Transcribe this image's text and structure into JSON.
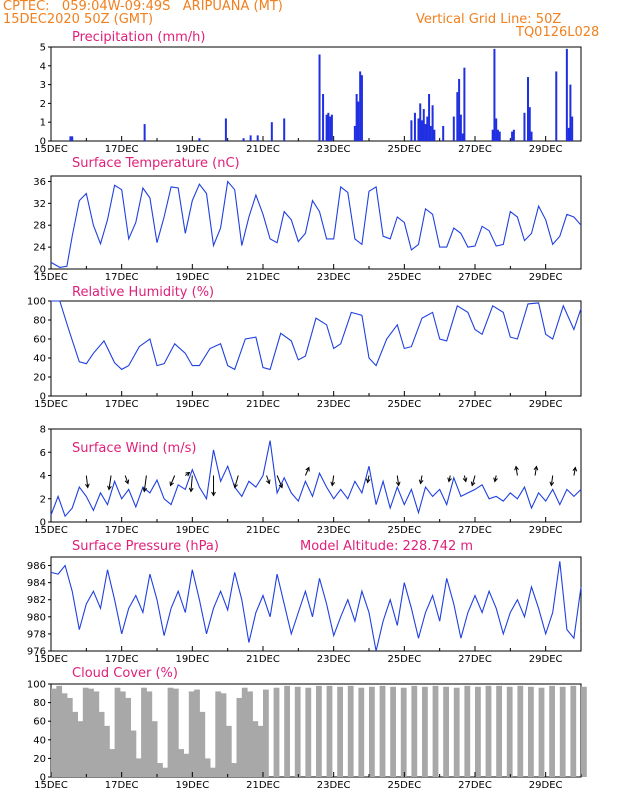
{
  "header": {
    "line1": "CPTEC:   059:04W-09:49S   ARIPUANA (MT)",
    "line2": "15DEC2020 50Z (GMT)",
    "right1": "Vertical Grid Line: 50Z",
    "right2": "TQ0126L028"
  },
  "colors": {
    "header": "#f08020",
    "title": "#e0207a",
    "line": "#2040e0",
    "bar": "#2030e0",
    "cloud": "#a8a8a8",
    "arrow": "#000000"
  },
  "chart_data": [
    {
      "type": "bar",
      "title": "Precipitation (mm/h)",
      "ylim": [
        0,
        5
      ],
      "yticks": [
        0,
        1,
        2,
        3,
        4,
        5
      ],
      "xticks": [
        "15DEC",
        "17DEC",
        "19DEC",
        "21DEC",
        "23DEC",
        "25DEC",
        "27DEC",
        "29DEC"
      ],
      "x": [
        0.55,
        0.6,
        2.65,
        4.2,
        4.95,
        5.45,
        5.65,
        5.85,
        6.25,
        6.6,
        7.6,
        7.7,
        7.8,
        7.85,
        7.9,
        7.95,
        8.6,
        8.65,
        8.7,
        8.75,
        8.8,
        10.2,
        10.3,
        10.4,
        10.45,
        10.5,
        10.55,
        10.6,
        10.65,
        10.7,
        10.75,
        10.8,
        10.85,
        11.1,
        11.4,
        11.5,
        11.55,
        11.6,
        11.65,
        11.7,
        12.5,
        12.55,
        12.6,
        12.65,
        12.7,
        13.05,
        13.1,
        13.4,
        13.5,
        13.55,
        13.6,
        14.3,
        14.6,
        14.65,
        14.7,
        14.75
      ],
      "values": [
        0.25,
        0.25,
        0.9,
        0.15,
        1.2,
        0.15,
        0.3,
        0.3,
        1.0,
        1.2,
        4.6,
        2.5,
        1.4,
        1.5,
        1.3,
        1.4,
        0.8,
        2.5,
        2.1,
        3.7,
        3.5,
        1.1,
        1.5,
        1.2,
        2.0,
        1.1,
        1.7,
        0.9,
        1.3,
        2.5,
        0.8,
        1.9,
        0.6,
        0.8,
        1.3,
        2.6,
        3.3,
        1.4,
        0.4,
        3.9,
        0.6,
        4.9,
        1.2,
        0.6,
        0.5,
        0.5,
        0.6,
        1.5,
        3.4,
        1.8,
        0.5,
        3.7,
        4.9,
        0.7,
        3.0,
        1.3
      ]
    },
    {
      "type": "line",
      "title": "Surface Temperature (nC)",
      "ylim": [
        20,
        37
      ],
      "yticks": [
        20,
        24,
        28,
        32,
        36
      ],
      "xticks": [
        "15DEC",
        "17DEC",
        "19DEC",
        "21DEC",
        "23DEC",
        "25DEC",
        "27DEC",
        "29DEC"
      ],
      "x": [
        0.0,
        0.25,
        0.45,
        0.6,
        0.8,
        1.0,
        1.2,
        1.4,
        1.6,
        1.8,
        2.0,
        2.2,
        2.4,
        2.6,
        2.8,
        3.0,
        3.2,
        3.4,
        3.6,
        3.8,
        4.0,
        4.2,
        4.4,
        4.6,
        4.8,
        5.0,
        5.2,
        5.4,
        5.6,
        5.8,
        6.0,
        6.2,
        6.4,
        6.6,
        6.8,
        7.0,
        7.2,
        7.4,
        7.6,
        7.8,
        8.0,
        8.2,
        8.4,
        8.6,
        8.8,
        9.0,
        9.2,
        9.4,
        9.6,
        9.8,
        10.0,
        10.2,
        10.4,
        10.6,
        10.8,
        11.0,
        11.2,
        11.4,
        11.6,
        11.8,
        12.0,
        12.2,
        12.4,
        12.6,
        12.8,
        13.0,
        13.2,
        13.4,
        13.6,
        13.8,
        14.0,
        14.2,
        14.4,
        14.6,
        14.8,
        15.0
      ],
      "values": [
        21.2,
        20.3,
        20.5,
        26.0,
        32.5,
        33.8,
        28.0,
        24.6,
        29.0,
        35.3,
        34.5,
        25.5,
        28.5,
        34.8,
        33.0,
        24.8,
        29.5,
        35.0,
        34.8,
        26.5,
        32.5,
        35.5,
        33.8,
        24.3,
        27.5,
        36.0,
        34.5,
        24.3,
        29.5,
        33.5,
        30.0,
        25.5,
        24.8,
        30.5,
        29.0,
        25.0,
        26.5,
        32.5,
        30.5,
        25.5,
        25.5,
        35.0,
        34.0,
        25.5,
        24.5,
        34.2,
        35.0,
        26.0,
        25.5,
        29.5,
        28.5,
        23.5,
        24.5,
        31.0,
        30.0,
        24.0,
        24.0,
        27.5,
        26.5,
        24.0,
        24.2,
        27.8,
        27.0,
        24.2,
        24.5,
        30.5,
        29.5,
        25.2,
        26.5,
        31.5,
        29.0,
        24.5,
        26.0,
        30.0,
        29.5,
        28.0
      ]
    },
    {
      "type": "line",
      "title": "Relative Humidity (%)",
      "ylim": [
        0,
        100
      ],
      "yticks": [
        0,
        20,
        40,
        60,
        80,
        100
      ],
      "xticks": [
        "15DEC",
        "17DEC",
        "19DEC",
        "21DEC",
        "23DEC",
        "25DEC",
        "27DEC",
        "29DEC"
      ],
      "x": [
        0.0,
        0.25,
        0.5,
        0.8,
        1.0,
        1.2,
        1.5,
        1.8,
        2.0,
        2.2,
        2.5,
        2.8,
        3.0,
        3.2,
        3.5,
        3.8,
        4.0,
        4.2,
        4.5,
        4.8,
        5.0,
        5.2,
        5.5,
        5.8,
        6.0,
        6.2,
        6.5,
        6.8,
        7.0,
        7.2,
        7.5,
        7.8,
        8.0,
        8.2,
        8.5,
        8.8,
        9.0,
        9.2,
        9.5,
        9.8,
        10.0,
        10.2,
        10.5,
        10.8,
        11.0,
        11.2,
        11.5,
        11.8,
        12.0,
        12.2,
        12.5,
        12.8,
        13.0,
        13.2,
        13.5,
        13.8,
        14.0,
        14.2,
        14.5,
        14.8,
        15.0
      ],
      "values": [
        100,
        100,
        70,
        36,
        34,
        45,
        58,
        35,
        28,
        32,
        52,
        60,
        32,
        34,
        55,
        45,
        32,
        32,
        50,
        55,
        32,
        28,
        60,
        62,
        30,
        28,
        66,
        58,
        38,
        42,
        82,
        75,
        50,
        55,
        88,
        85,
        40,
        32,
        60,
        75,
        50,
        52,
        82,
        88,
        60,
        58,
        95,
        88,
        70,
        65,
        95,
        88,
        62,
        60,
        97,
        98,
        65,
        60,
        95,
        70,
        92
      ]
    },
    {
      "type": "line",
      "title": "Surface Wind (m/s)",
      "ylim": [
        0,
        8
      ],
      "yticks": [
        0,
        2,
        4,
        6,
        8
      ],
      "xticks": [
        "15DEC",
        "17DEC",
        "19DEC",
        "21DEC",
        "23DEC",
        "25DEC",
        "27DEC",
        "29DEC"
      ],
      "x": [
        0.0,
        0.2,
        0.4,
        0.6,
        0.8,
        1.0,
        1.2,
        1.4,
        1.6,
        1.8,
        2.0,
        2.2,
        2.4,
        2.6,
        2.8,
        3.0,
        3.2,
        3.4,
        3.6,
        3.8,
        4.0,
        4.2,
        4.4,
        4.6,
        4.8,
        5.0,
        5.2,
        5.4,
        5.6,
        5.8,
        6.0,
        6.2,
        6.4,
        6.6,
        6.8,
        7.0,
        7.2,
        7.4,
        7.6,
        7.8,
        8.0,
        8.2,
        8.4,
        8.6,
        8.8,
        9.0,
        9.2,
        9.4,
        9.6,
        9.8,
        10.0,
        10.2,
        10.4,
        10.6,
        10.8,
        11.0,
        11.2,
        11.4,
        11.6,
        11.8,
        12.0,
        12.2,
        12.4,
        12.6,
        12.8,
        13.0,
        13.2,
        13.4,
        13.6,
        13.8,
        14.0,
        14.2,
        14.4,
        14.6,
        14.8,
        15.0
      ],
      "values": [
        0.6,
        2.2,
        0.5,
        1.2,
        3.0,
        2.2,
        1.0,
        2.5,
        1.5,
        3.5,
        2.0,
        2.8,
        1.3,
        3.0,
        2.5,
        3.6,
        2.0,
        1.5,
        3.2,
        2.8,
        4.5,
        3.0,
        2.0,
        6.2,
        3.5,
        4.8,
        3.0,
        2.2,
        3.5,
        3.0,
        4.0,
        7.0,
        2.5,
        3.8,
        2.5,
        1.8,
        3.5,
        2.2,
        4.2,
        3.0,
        2.0,
        2.8,
        2.0,
        3.5,
        2.5,
        4.8,
        1.5,
        3.5,
        1.2,
        3.0,
        1.5,
        2.8,
        0.8,
        3.0,
        2.2,
        2.8,
        1.5,
        3.8,
        2.2,
        2.5,
        2.8,
        3.2,
        2.0,
        2.2,
        1.8,
        2.5,
        2.0,
        3.0,
        1.2,
        2.5,
        1.8,
        2.8,
        1.5,
        2.8,
        2.2,
        2.8
      ],
      "arrows": [
        {
          "x": 1.0,
          "dx": 0.1,
          "dy": -1.2
        },
        {
          "x": 1.7,
          "dx": -0.15,
          "dy": -1.4
        },
        {
          "x": 2.7,
          "dx": -0.15,
          "dy": -1.6
        },
        {
          "x": 3.5,
          "dx": -0.3,
          "dy": -1.0
        },
        {
          "x": 4.0,
          "dx": -0.1,
          "dy": -1.6
        },
        {
          "x": 4.6,
          "dx": 0.0,
          "dy": -2.0
        },
        {
          "x": 5.3,
          "dx": -0.25,
          "dy": -1.2
        },
        {
          "x": 6.4,
          "dx": 0.35,
          "dy": -1.2
        },
        {
          "x": 7.2,
          "dx": 0.25,
          "dy": 0.8
        },
        {
          "x": 8.0,
          "dx": -0.1,
          "dy": -1.0
        },
        {
          "x": 9.8,
          "dx": 0.1,
          "dy": -1.0
        },
        {
          "x": 10.5,
          "dx": -0.1,
          "dy": -0.8
        },
        {
          "x": 11.3,
          "dx": -0.1,
          "dy": -0.6
        },
        {
          "x": 12.0,
          "dx": -0.2,
          "dy": -1.0
        },
        {
          "x": 12.6,
          "dx": -0.1,
          "dy": -0.6
        },
        {
          "x": 13.2,
          "dx": -0.1,
          "dy": 0.9
        },
        {
          "x": 13.7,
          "dx": 0.1,
          "dy": 0.9
        },
        {
          "x": 14.2,
          "dx": -0.1,
          "dy": -1.0
        },
        {
          "x": 14.8,
          "dx": 0.1,
          "dy": 0.8
        },
        {
          "x": 2.1,
          "dx": 0.2,
          "dy": -0.8
        },
        {
          "x": 3.8,
          "dx": 0.3,
          "dy": 0.3
        },
        {
          "x": 6.1,
          "dx": 0.2,
          "dy": -0.8
        },
        {
          "x": 9.0,
          "dx": -0.1,
          "dy": -0.7
        },
        {
          "x": 11.7,
          "dx": 0.1,
          "dy": -0.6
        }
      ]
    },
    {
      "type": "line",
      "title": "Surface Pressure (hPa)",
      "annotation": "Model Altitude: 228.742  m",
      "ylim": [
        976,
        987
      ],
      "yticks": [
        976,
        978,
        980,
        982,
        984,
        986
      ],
      "xticks": [
        "15DEC",
        "17DEC",
        "19DEC",
        "21DEC",
        "23DEC",
        "25DEC",
        "27DEC",
        "29DEC"
      ],
      "x": [
        0.0,
        0.2,
        0.4,
        0.6,
        0.8,
        1.0,
        1.2,
        1.4,
        1.6,
        1.8,
        2.0,
        2.2,
        2.4,
        2.6,
        2.8,
        3.0,
        3.2,
        3.4,
        3.6,
        3.8,
        4.0,
        4.2,
        4.4,
        4.6,
        4.8,
        5.0,
        5.2,
        5.4,
        5.6,
        5.8,
        6.0,
        6.2,
        6.4,
        6.6,
        6.8,
        7.0,
        7.2,
        7.4,
        7.6,
        7.8,
        8.0,
        8.2,
        8.4,
        8.6,
        8.8,
        9.0,
        9.2,
        9.4,
        9.6,
        9.8,
        10.0,
        10.2,
        10.4,
        10.6,
        10.8,
        11.0,
        11.2,
        11.4,
        11.6,
        11.8,
        12.0,
        12.2,
        12.4,
        12.6,
        12.8,
        13.0,
        13.2,
        13.4,
        13.6,
        13.8,
        14.0,
        14.2,
        14.4,
        14.6,
        14.8,
        15.0
      ],
      "values": [
        985.2,
        985.0,
        986.0,
        983.0,
        978.5,
        981.5,
        983.0,
        981.0,
        985.5,
        982.0,
        978.0,
        981.0,
        982.5,
        980.5,
        985.0,
        982.0,
        977.8,
        981.0,
        983.0,
        980.5,
        985.5,
        982.0,
        978.0,
        981.0,
        983.0,
        980.8,
        985.2,
        982.0,
        977.0,
        980.5,
        982.5,
        980.0,
        985.0,
        981.5,
        978.0,
        980.5,
        983.0,
        980.0,
        984.5,
        981.5,
        977.8,
        980.0,
        982.0,
        979.5,
        983.0,
        980.5,
        976.0,
        979.5,
        982.0,
        979.0,
        984.0,
        981.0,
        977.5,
        980.5,
        982.5,
        979.5,
        984.5,
        981.5,
        977.5,
        980.5,
        982.5,
        980.5,
        983.0,
        981.0,
        978.0,
        980.5,
        982.0,
        980.0,
        983.5,
        981.0,
        978.0,
        980.5,
        986.5,
        978.5,
        977.5,
        983.5
      ]
    },
    {
      "type": "area",
      "title": "Cloud Cover (%)",
      "ylim": [
        0,
        100
      ],
      "yticks": [
        0,
        20,
        40,
        60,
        80,
        100
      ],
      "xticks": [
        "15DEC",
        "17DEC",
        "19DEC",
        "21DEC",
        "23DEC",
        "25DEC",
        "27DEC",
        "29DEC"
      ],
      "x": [
        0.0,
        0.15,
        0.3,
        0.45,
        0.6,
        0.75,
        0.9,
        1.05,
        1.2,
        1.35,
        1.5,
        1.65,
        1.8,
        1.95,
        2.1,
        2.25,
        2.4,
        2.55,
        2.7,
        2.85,
        3.0,
        3.15,
        3.3,
        3.45,
        3.6,
        3.75,
        3.9,
        4.05,
        4.2,
        4.35,
        4.5,
        4.65,
        4.8,
        4.95,
        5.1,
        5.25,
        5.4,
        5.55,
        5.7,
        5.85,
        6.0,
        6.3,
        6.6,
        6.9,
        7.2,
        7.5,
        7.8,
        8.1,
        8.4,
        8.7,
        9.0,
        9.3,
        9.6,
        9.9,
        10.2,
        10.5,
        10.8,
        11.1,
        11.4,
        11.7,
        12.0,
        12.3,
        12.6,
        12.9,
        13.2,
        13.5,
        13.8,
        14.1,
        14.4,
        14.7,
        15.0
      ],
      "values": [
        95,
        98,
        90,
        85,
        70,
        60,
        96,
        95,
        92,
        70,
        55,
        30,
        96,
        92,
        85,
        50,
        20,
        96,
        92,
        60,
        15,
        10,
        96,
        95,
        30,
        25,
        92,
        94,
        70,
        20,
        10,
        92,
        90,
        55,
        15,
        85,
        96,
        92,
        60,
        55,
        94,
        96,
        98,
        97,
        96,
        98,
        98,
        97,
        98,
        96,
        97,
        98,
        97,
        96,
        98,
        97,
        98,
        97,
        96,
        98,
        97,
        98,
        98,
        97,
        98,
        97,
        96,
        98,
        97,
        98,
        97
      ]
    }
  ]
}
